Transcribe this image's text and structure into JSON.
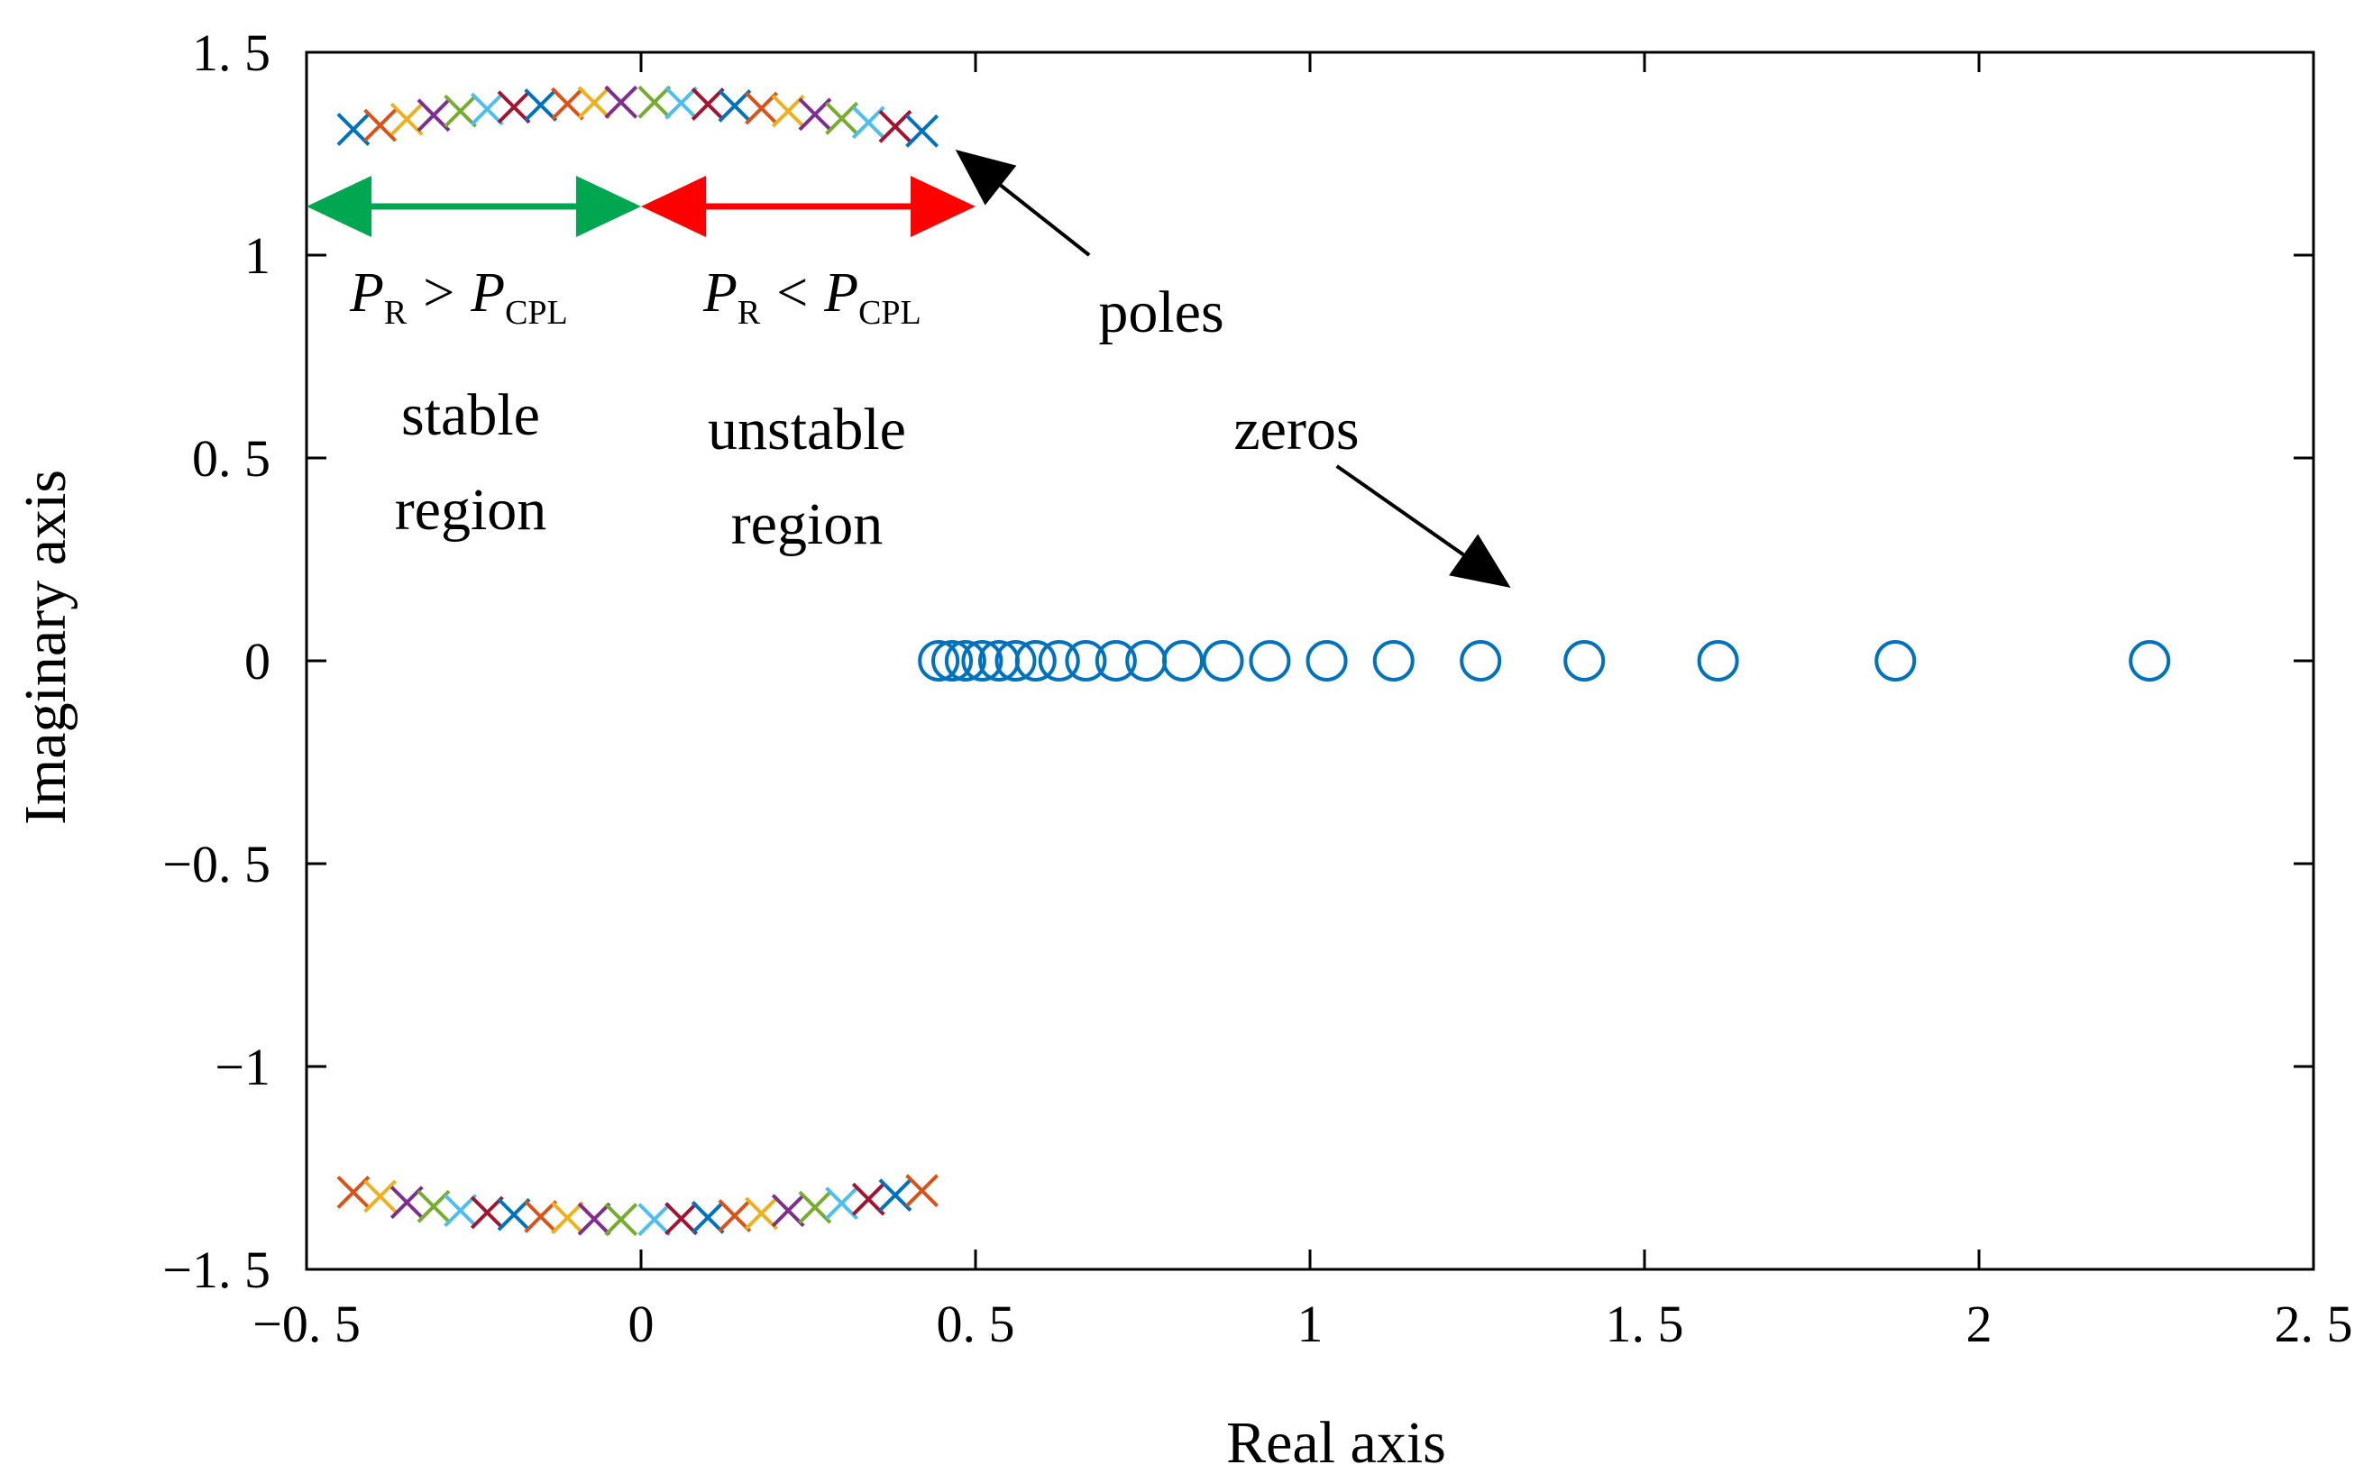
{
  "chart_data": {
    "type": "scatter",
    "title": "",
    "xlabel": "Real axis",
    "ylabel": "Imaginary axis",
    "xlim": [
      -0.5,
      2.5
    ],
    "ylim": [
      -1.5,
      1.5
    ],
    "xticks": [
      -0.5,
      0,
      0.5,
      1,
      1.5,
      2,
      2.5
    ],
    "xtick_labels": [
      "−0. 5",
      "0",
      "0. 5",
      "1",
      "1. 5",
      "2",
      "2. 5"
    ],
    "yticks": [
      1.5,
      1,
      0.5,
      0,
      -0.5,
      -1,
      -1.5
    ],
    "ytick_labels": [
      "1. 5",
      "1",
      "0. 5",
      "0",
      "−0. 5",
      "−1",
      "−1. 5"
    ],
    "grid": false,
    "marker_colors": [
      "#0072bd",
      "#d95319",
      "#edb120",
      "#7e2f8e",
      "#77ac30",
      "#4dbeee",
      "#a2142f"
    ],
    "series": [
      {
        "name": "poles",
        "marker": "x",
        "points": [
          {
            "x": -0.43,
            "y": 1.31
          },
          {
            "x": -0.39,
            "y": 1.32
          },
          {
            "x": -0.35,
            "y": 1.335
          },
          {
            "x": -0.31,
            "y": 1.345
          },
          {
            "x": -0.27,
            "y": 1.355
          },
          {
            "x": -0.23,
            "y": 1.36
          },
          {
            "x": -0.19,
            "y": 1.365
          },
          {
            "x": -0.15,
            "y": 1.37
          },
          {
            "x": -0.11,
            "y": 1.373
          },
          {
            "x": -0.07,
            "y": 1.376
          },
          {
            "x": -0.03,
            "y": 1.377
          },
          {
            "x": 0.02,
            "y": 1.377
          },
          {
            "x": 0.06,
            "y": 1.375
          },
          {
            "x": 0.1,
            "y": 1.372
          },
          {
            "x": 0.14,
            "y": 1.368
          },
          {
            "x": 0.18,
            "y": 1.362
          },
          {
            "x": 0.22,
            "y": 1.355
          },
          {
            "x": 0.26,
            "y": 1.347
          },
          {
            "x": 0.3,
            "y": 1.337
          },
          {
            "x": 0.34,
            "y": 1.327
          },
          {
            "x": 0.38,
            "y": 1.317
          },
          {
            "x": 0.42,
            "y": 1.306
          },
          {
            "x": -0.43,
            "y": -1.31
          },
          {
            "x": -0.39,
            "y": -1.32
          },
          {
            "x": -0.35,
            "y": -1.335
          },
          {
            "x": -0.31,
            "y": -1.345
          },
          {
            "x": -0.27,
            "y": -1.355
          },
          {
            "x": -0.23,
            "y": -1.36
          },
          {
            "x": -0.19,
            "y": -1.365
          },
          {
            "x": -0.15,
            "y": -1.37
          },
          {
            "x": -0.11,
            "y": -1.373
          },
          {
            "x": -0.07,
            "y": -1.376
          },
          {
            "x": -0.03,
            "y": -1.377
          },
          {
            "x": 0.02,
            "y": -1.377
          },
          {
            "x": 0.06,
            "y": -1.375
          },
          {
            "x": 0.1,
            "y": -1.372
          },
          {
            "x": 0.14,
            "y": -1.368
          },
          {
            "x": 0.18,
            "y": -1.362
          },
          {
            "x": 0.22,
            "y": -1.355
          },
          {
            "x": 0.26,
            "y": -1.347
          },
          {
            "x": 0.3,
            "y": -1.337
          },
          {
            "x": 0.34,
            "y": -1.327
          },
          {
            "x": 0.38,
            "y": -1.317
          },
          {
            "x": 0.42,
            "y": -1.306
          }
        ]
      },
      {
        "name": "zeros",
        "marker": "o",
        "color": "#0072bd",
        "points": [
          {
            "x": 0.445,
            "y": 0
          },
          {
            "x": 0.465,
            "y": 0
          },
          {
            "x": 0.485,
            "y": 0
          },
          {
            "x": 0.51,
            "y": 0
          },
          {
            "x": 0.535,
            "y": 0
          },
          {
            "x": 0.56,
            "y": 0
          },
          {
            "x": 0.59,
            "y": 0
          },
          {
            "x": 0.625,
            "y": 0
          },
          {
            "x": 0.665,
            "y": 0
          },
          {
            "x": 0.71,
            "y": 0
          },
          {
            "x": 0.755,
            "y": 0
          },
          {
            "x": 0.81,
            "y": 0
          },
          {
            "x": 0.87,
            "y": 0
          },
          {
            "x": 0.94,
            "y": 0
          },
          {
            "x": 1.025,
            "y": 0
          },
          {
            "x": 1.125,
            "y": 0
          },
          {
            "x": 1.255,
            "y": 0
          },
          {
            "x": 1.41,
            "y": 0
          },
          {
            "x": 1.61,
            "y": 0
          },
          {
            "x": 1.875,
            "y": 0
          },
          {
            "x": 2.255,
            "y": 0
          }
        ]
      }
    ],
    "annotations": {
      "poles_label": "poles",
      "zeros_label": "zeros",
      "stable": {
        "symbol": "P",
        "sub_left": "R",
        "op": ">",
        "sub_right": "CPL",
        "line1": "stable",
        "line2": "region",
        "color": "#00a650",
        "x_from": -0.5,
        "x_to": 0,
        "y": 1.12
      },
      "unstable": {
        "symbol": "P",
        "sub_left": "R",
        "op": "<",
        "sub_right": "CPL",
        "line1": "unstable",
        "line2": "region",
        "color": "#ff0000",
        "x_from": 0,
        "x_to": 0.5,
        "y": 1.12
      },
      "poles_arrow": {
        "x_from": 0.67,
        "y_from": 1.0,
        "x_to": 0.47,
        "y_to": 1.26
      },
      "zeros_arrow": {
        "x_from": 1.04,
        "y_from": 0.48,
        "x_to": 1.3,
        "y_to": 0.18
      }
    }
  }
}
